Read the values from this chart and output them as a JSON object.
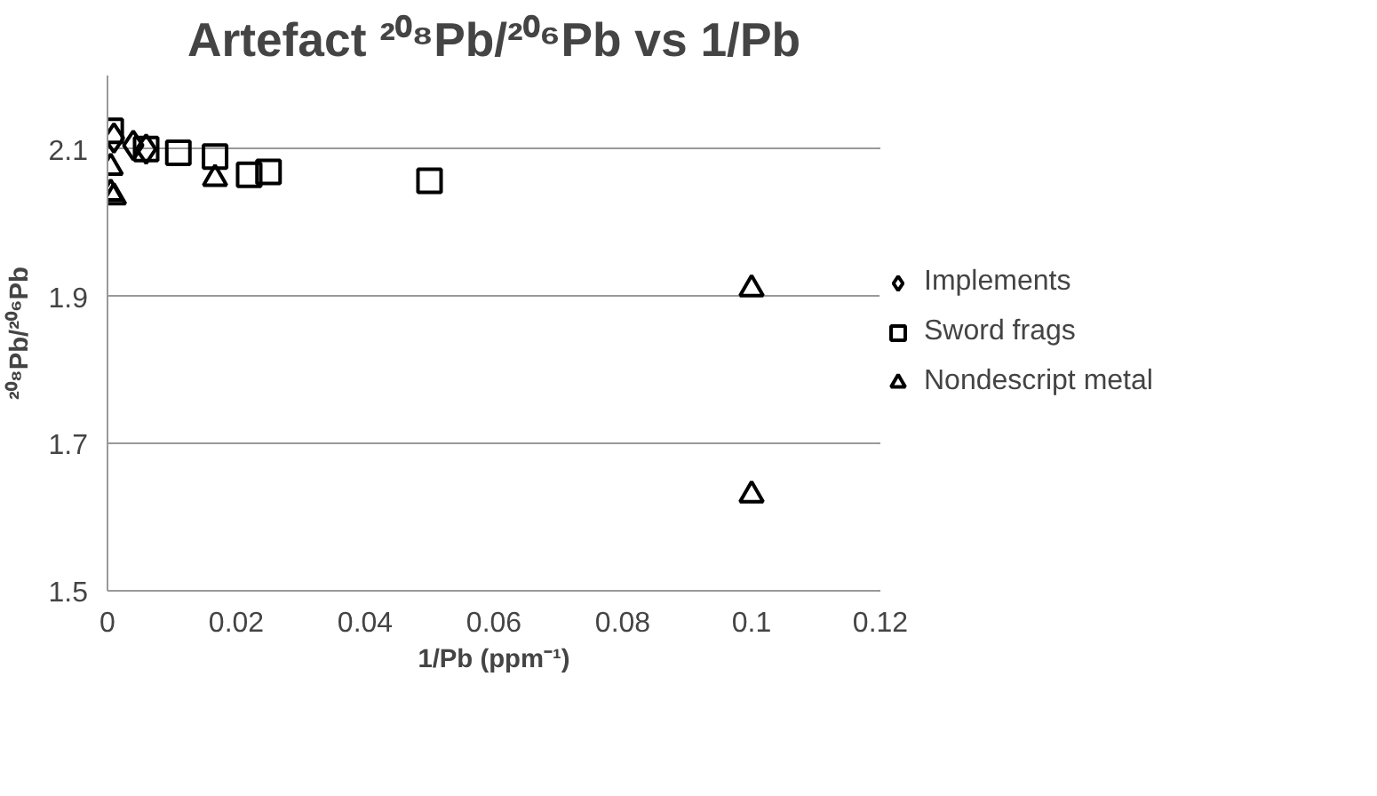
{
  "chart_data": {
    "type": "scatter",
    "title": "Artefact ²⁰⁸Pb/²⁰⁶Pb vs 1/Pb",
    "xlabel": "1/Pb (ppm⁻¹)",
    "ylabel": "²⁰⁸Pb/²⁰⁶Pb",
    "xlim": [
      0,
      0.12
    ],
    "xticks": [
      0,
      0.02,
      0.04,
      0.06,
      0.08,
      0.1,
      0.12
    ],
    "ylim": [
      1.5,
      2.2
    ],
    "yticks": [
      1.5,
      1.7,
      1.9,
      2.1
    ],
    "grid": "y",
    "legend": "right",
    "series": [
      {
        "name": "Implements",
        "color": "#000000",
        "marker": "diamond",
        "x": [
          0.001,
          0.004,
          0.006
        ],
        "values": [
          2.115,
          2.105,
          2.1
        ]
      },
      {
        "name": "Sword frags",
        "color": "#000000",
        "marker": "square",
        "x": [
          0.0005,
          0.006,
          0.011,
          0.0167,
          0.022,
          0.025,
          0.05
        ],
        "values": [
          2.125,
          2.1,
          2.095,
          2.09,
          2.065,
          2.069,
          2.057
        ]
      },
      {
        "name": "Nondescript metal",
        "color": "#000000",
        "marker": "triangle",
        "x": [
          0.0005,
          0.0005,
          0.001,
          0.0167,
          0.1,
          0.1
        ],
        "values": [
          2.075,
          2.04,
          2.035,
          2.06,
          1.91,
          1.63
        ]
      }
    ]
  }
}
